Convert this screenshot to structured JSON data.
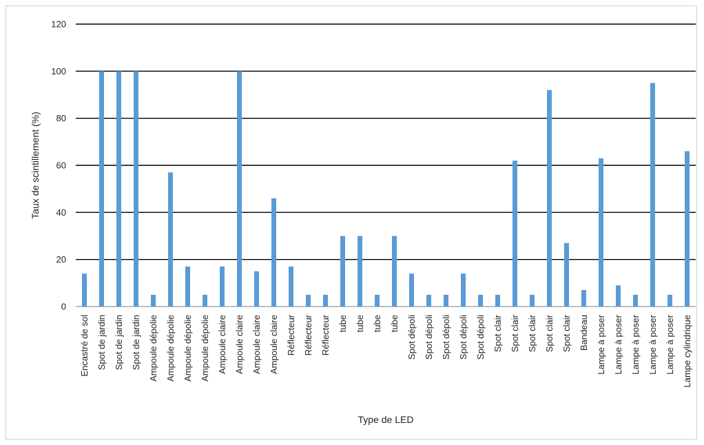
{
  "chart_data": {
    "type": "bar",
    "title": "",
    "xlabel": "Type de LED",
    "ylabel": "Taux de scintillement  (%)",
    "ylim": [
      0,
      120
    ],
    "yticks": [
      0,
      20,
      40,
      60,
      80,
      100,
      120
    ],
    "grid": true,
    "legend": "none",
    "bar_color": "#5b9bd5",
    "categories": [
      "Encastré de sol",
      "Spot de jardin",
      "Spot de jardin",
      "Spot de jardin",
      "Ampoule dépolie",
      "Ampoule dépolie",
      "Ampoule dépolie",
      "Ampoule dépolie",
      "Ampoule claire",
      "Ampoule claire",
      "Ampoule claire",
      "Ampoule claire",
      "Réflecteur",
      "Réflecteur",
      "Réflecteur",
      "tube",
      "tube",
      "tube",
      "tube",
      "Spot dépoli",
      "Spot dépoli",
      "Spot dépoli",
      "Spot dépoli",
      "Spot dépoli",
      "Spot clair",
      "Spot clair",
      "Spot clair",
      "Spot clair",
      "Spot clair",
      "Bandeau",
      "Lampe à poser",
      "Lampe à poser",
      "Lampe à poser",
      "Lampe à poser",
      "Lampe à poser",
      "Lampe cylindrique"
    ],
    "values": [
      14,
      100,
      100,
      100,
      5,
      57,
      17,
      5,
      17,
      100,
      15,
      46,
      17,
      5,
      5,
      30,
      30,
      5,
      30,
      14,
      5,
      5,
      14,
      5,
      5,
      62,
      5,
      92,
      27,
      7,
      63,
      9,
      5,
      95,
      5,
      66
    ]
  }
}
